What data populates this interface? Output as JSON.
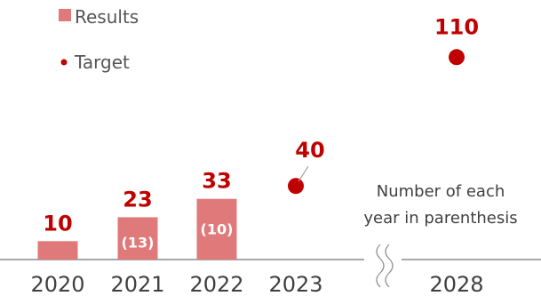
{
  "colors": {
    "results": "#e07a7a",
    "target": "#c00000",
    "value_text": "#c00000",
    "axis": "#8c8c8c",
    "axis_text": "#404040"
  },
  "legend": {
    "results_label": "Results",
    "target_label": "Target"
  },
  "note": {
    "line1": "Number of each",
    "line2": "year in parenthesis"
  },
  "axis_break": true,
  "chart_data": {
    "type": "bar",
    "categories": [
      "2020",
      "2021",
      "2022",
      "2023",
      "2028"
    ],
    "series": [
      {
        "name": "Results",
        "kind": "bar",
        "values": [
          10,
          23,
          33,
          null,
          null
        ]
      },
      {
        "name": "Target",
        "kind": "point",
        "values": [
          null,
          null,
          null,
          40,
          110
        ]
      }
    ],
    "value_labels": [
      "10",
      "23",
      "33",
      "40",
      "110"
    ],
    "annual_increments": [
      null,
      "(13)",
      "(10)",
      null,
      null
    ],
    "ylim": [
      0,
      125
    ]
  }
}
